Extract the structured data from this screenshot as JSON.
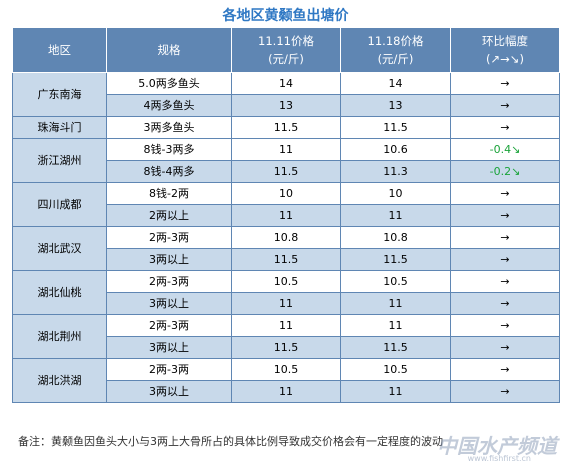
{
  "title": "各地区黄颡鱼出塘价",
  "headers": {
    "region": "地区",
    "spec": "规格",
    "price1_line1": "11.11价格",
    "price1_line2": "(元/斤)",
    "price2_line1": "11.18价格",
    "price2_line2": "(元/斤)",
    "change_line1": "环比幅度",
    "change_line2": "(↗→↘)"
  },
  "regions": [
    {
      "name": "广东南海",
      "rows": [
        {
          "spec": "5.0两多鱼头",
          "p1": "14",
          "p2": "14",
          "change": "→",
          "trend": "flat"
        },
        {
          "spec": "4两多鱼头",
          "p1": "13",
          "p2": "13",
          "change": "→",
          "trend": "flat"
        }
      ]
    },
    {
      "name": "珠海斗门",
      "rows": [
        {
          "spec": "3两多鱼头",
          "p1": "11.5",
          "p2": "11.5",
          "change": "→",
          "trend": "flat"
        }
      ]
    },
    {
      "name": "浙江湖州",
      "rows": [
        {
          "spec": "8钱-3两多",
          "p1": "11",
          "p2": "10.6",
          "change": "-0.4↘",
          "trend": "down"
        },
        {
          "spec": "8钱-4两多",
          "p1": "11.5",
          "p2": "11.3",
          "change": "-0.2↘",
          "trend": "down"
        }
      ]
    },
    {
      "name": "四川成都",
      "rows": [
        {
          "spec": "8钱-2两",
          "p1": "10",
          "p2": "10",
          "change": "→",
          "trend": "flat"
        },
        {
          "spec": "2两以上",
          "p1": "11",
          "p2": "11",
          "change": "→",
          "trend": "flat"
        }
      ]
    },
    {
      "name": "湖北武汉",
      "rows": [
        {
          "spec": "2两-3两",
          "p1": "10.8",
          "p2": "10.8",
          "change": "→",
          "trend": "flat"
        },
        {
          "spec": "3两以上",
          "p1": "11.5",
          "p2": "11.5",
          "change": "→",
          "trend": "flat"
        }
      ]
    },
    {
      "name": "湖北仙桃",
      "rows": [
        {
          "spec": "2两-3两",
          "p1": "10.5",
          "p2": "10.5",
          "change": "→",
          "trend": "flat"
        },
        {
          "spec": "3两以上",
          "p1": "11",
          "p2": "11",
          "change": "→",
          "trend": "flat"
        }
      ]
    },
    {
      "name": "湖北荆州",
      "rows": [
        {
          "spec": "2两-3两",
          "p1": "11",
          "p2": "11",
          "change": "→",
          "trend": "flat"
        },
        {
          "spec": "3两以上",
          "p1": "11.5",
          "p2": "11.5",
          "change": "→",
          "trend": "flat"
        }
      ]
    },
    {
      "name": "湖北洪湖",
      "rows": [
        {
          "spec": "2两-3两",
          "p1": "10.5",
          "p2": "10.5",
          "change": "→",
          "trend": "flat"
        },
        {
          "spec": "3两以上",
          "p1": "11",
          "p2": "11",
          "change": "→",
          "trend": "flat"
        }
      ]
    }
  ],
  "note": "备注：黄颡鱼因鱼头大小与3两上大骨所占的具体比例导致成交价格会有一定程度的波动",
  "watermark": "中国水产频道",
  "watermark_url": "www.fishfirst.cn",
  "colors": {
    "header_bg": "#5f86b3",
    "shade_bg": "#c8d9ea",
    "title": "#2f78c4",
    "down": "#1aa33a"
  }
}
